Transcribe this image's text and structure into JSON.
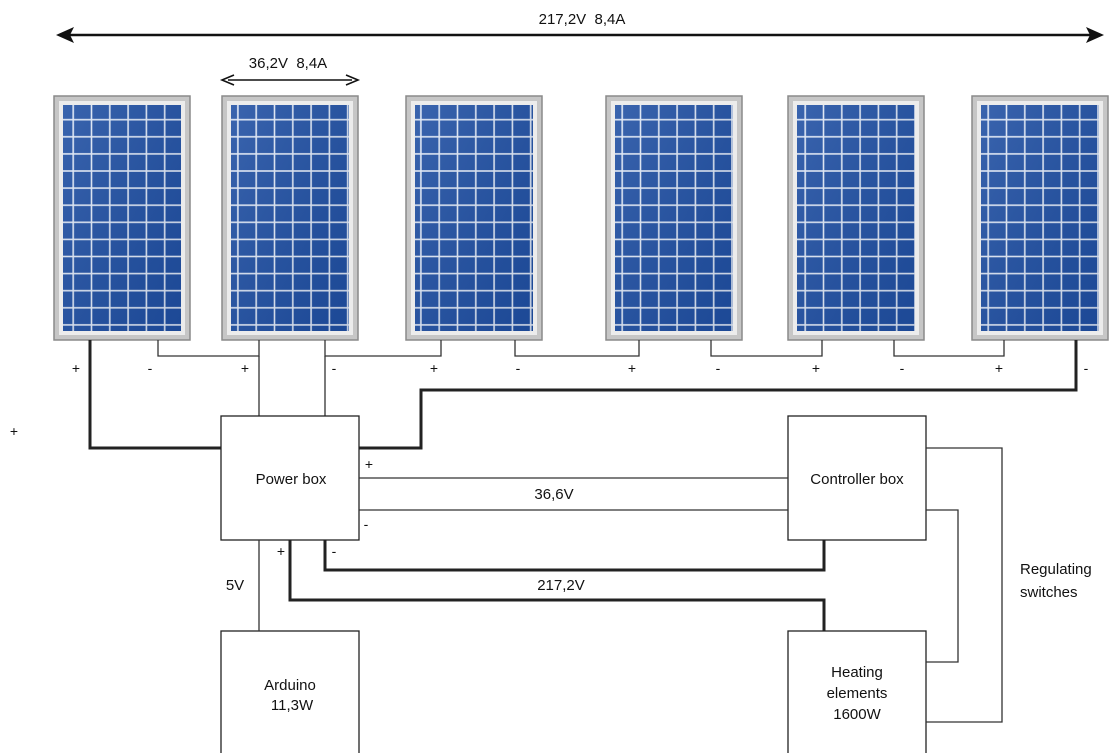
{
  "top_dimension": "217,2V  8,4A",
  "panel_dimension": "36,2V  8,4A",
  "panel_count": 6,
  "panel_terminal_signs": [
    "+",
    "-",
    "+",
    "-",
    "+",
    "-",
    "+",
    "-",
    "+",
    "-",
    "+",
    "-"
  ],
  "stray_plus": "+",
  "boxes": {
    "power": "Power box",
    "controller": "Controller box",
    "arduino": [
      "Arduino",
      "11,3W"
    ],
    "heating": [
      "Heating",
      "elements",
      "1600W"
    ]
  },
  "power_box_terminals": {
    "plus_right": "+",
    "minus_right": "-",
    "plus_bottom": "+",
    "minus_bottom": "-"
  },
  "wire_labels": {
    "control_voltage": "36,6V",
    "main_voltage": "217,2V",
    "arduino_voltage": "5V"
  },
  "switch_label": [
    "Regulating",
    "switches"
  ],
  "colors": {
    "panel_cell": "#1f4fa3",
    "panel_grid": "#dfe8f7",
    "panel_frame": "#9a9a9a",
    "wire": "#222222"
  }
}
